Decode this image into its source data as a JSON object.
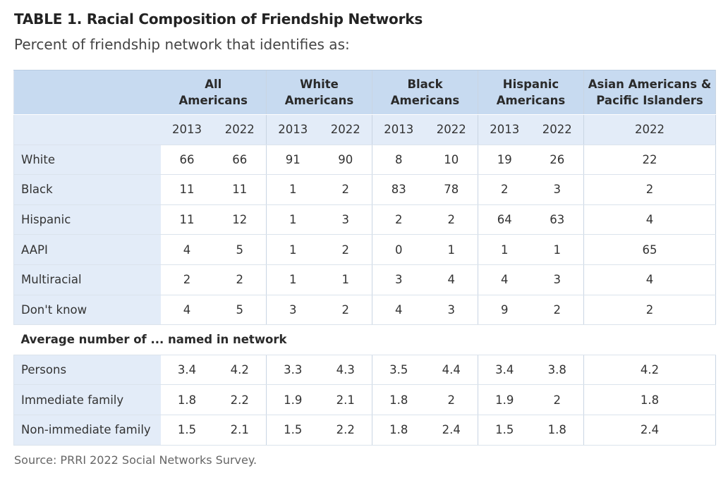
{
  "header": {
    "title": "TABLE 1.  Racial Composition of Friendship Networks",
    "subtitle": "Percent of friendship network that identifies as:"
  },
  "table": {
    "groups": [
      {
        "line1": "All",
        "line2": "Americans"
      },
      {
        "line1": "White",
        "line2": "Americans"
      },
      {
        "line1": "Black",
        "line2": "Americans"
      },
      {
        "line1": "Hispanic",
        "line2": "Americans"
      },
      {
        "line1": "Asian Americans &",
        "line2": "Pacific Islanders"
      }
    ],
    "years": [
      "2013",
      "2022",
      "2013",
      "2022",
      "2013",
      "2022",
      "2013",
      "2022",
      "2022"
    ],
    "rows": [
      {
        "label": "White",
        "values": [
          "66",
          "66",
          "91",
          "90",
          "8",
          "10",
          "19",
          "26",
          "22"
        ]
      },
      {
        "label": "Black",
        "values": [
          "11",
          "11",
          "1",
          "2",
          "83",
          "78",
          "2",
          "3",
          "2"
        ]
      },
      {
        "label": "Hispanic",
        "values": [
          "11",
          "12",
          "1",
          "3",
          "2",
          "2",
          "64",
          "63",
          "4"
        ]
      },
      {
        "label": "AAPI",
        "values": [
          "4",
          "5",
          "1",
          "2",
          "0",
          "1",
          "1",
          "1",
          "65"
        ]
      },
      {
        "label": "Multiracial",
        "values": [
          "2",
          "2",
          "1",
          "1",
          "3",
          "4",
          "4",
          "3",
          "4"
        ]
      },
      {
        "label": "Don't know",
        "values": [
          "4",
          "5",
          "3",
          "2",
          "4",
          "3",
          "9",
          "2",
          "2"
        ]
      }
    ],
    "section_label": "Average number of ... named in network",
    "avg_rows": [
      {
        "label": "Persons",
        "values": [
          "3.4",
          "4.2",
          "3.3",
          "4.3",
          "3.5",
          "4.4",
          "3.4",
          "3.8",
          "4.2"
        ]
      },
      {
        "label": "Immediate family",
        "values": [
          "1.8",
          "2.2",
          "1.9",
          "2.1",
          "1.8",
          "2",
          "1.9",
          "2",
          "1.8"
        ]
      },
      {
        "label": "Non-immediate family",
        "values": [
          "1.5",
          "2.1",
          "1.5",
          "2.2",
          "1.8",
          "2.4",
          "1.5",
          "1.8",
          "2.4"
        ]
      }
    ]
  },
  "footer": {
    "source": "Source: PRRI 2022 Social Networks Survey."
  },
  "colors": {
    "header_bg": "#c7daf0",
    "label_bg": "#e3ecf8",
    "border": "#dbe3ec"
  }
}
